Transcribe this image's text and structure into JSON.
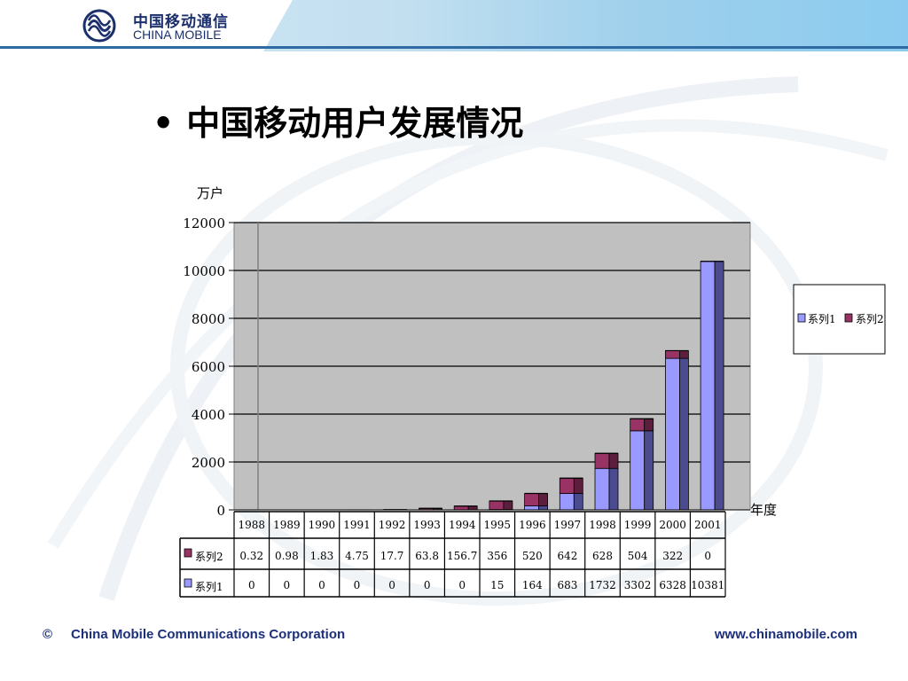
{
  "header": {
    "logo_cn": "中国移动通信",
    "logo_en": "CHINA MOBILE"
  },
  "title": {
    "bullet": "•",
    "text": "中国移动用户发展情况"
  },
  "colors": {
    "series1": "#9999ff",
    "series1_dark": "#4b4b8f",
    "series2": "#993366",
    "series2_dark": "#5c1e3d",
    "plot_bg": "#c0c0c0",
    "brand_blue": "#1c2f7a"
  },
  "chart_data": {
    "type": "bar",
    "stacked": true,
    "ylabel": "万户",
    "xlabel": "年度",
    "ylim": [
      0,
      12000
    ],
    "yticks": [
      0,
      2000,
      4000,
      6000,
      8000,
      10000,
      12000
    ],
    "grid": true,
    "legend_position": "right",
    "categories": [
      "1988",
      "1989",
      "1990",
      "1991",
      "1992",
      "1993",
      "1994",
      "1995",
      "1996",
      "1997",
      "1998",
      "1999",
      "2000",
      "2001"
    ],
    "series": [
      {
        "name": "系列1",
        "values": [
          0,
          0,
          0,
          0,
          0,
          0,
          0,
          15,
          164,
          683,
          1732,
          3302,
          6328,
          10381
        ]
      },
      {
        "name": "系列2",
        "values": [
          0.32,
          0.98,
          1.83,
          4.75,
          17.7,
          63.8,
          156.7,
          356,
          520,
          642,
          628,
          504,
          322,
          0
        ]
      }
    ],
    "table": {
      "series1_display": [
        "0",
        "0",
        "0",
        "0",
        "0",
        "0",
        "0",
        "15",
        "164",
        "683",
        "1732",
        "3302",
        "6328",
        "10381"
      ],
      "series2_display": [
        "0.32",
        "0.98",
        "1.83",
        "4.75",
        "17.7",
        "63.8",
        "156.7",
        "356",
        "520",
        "642",
        "628",
        "504",
        "322",
        "0"
      ]
    }
  },
  "footer": {
    "copyright": "©",
    "company": "China Mobile Communications Corporation",
    "url": "www.chinamobile.com"
  }
}
